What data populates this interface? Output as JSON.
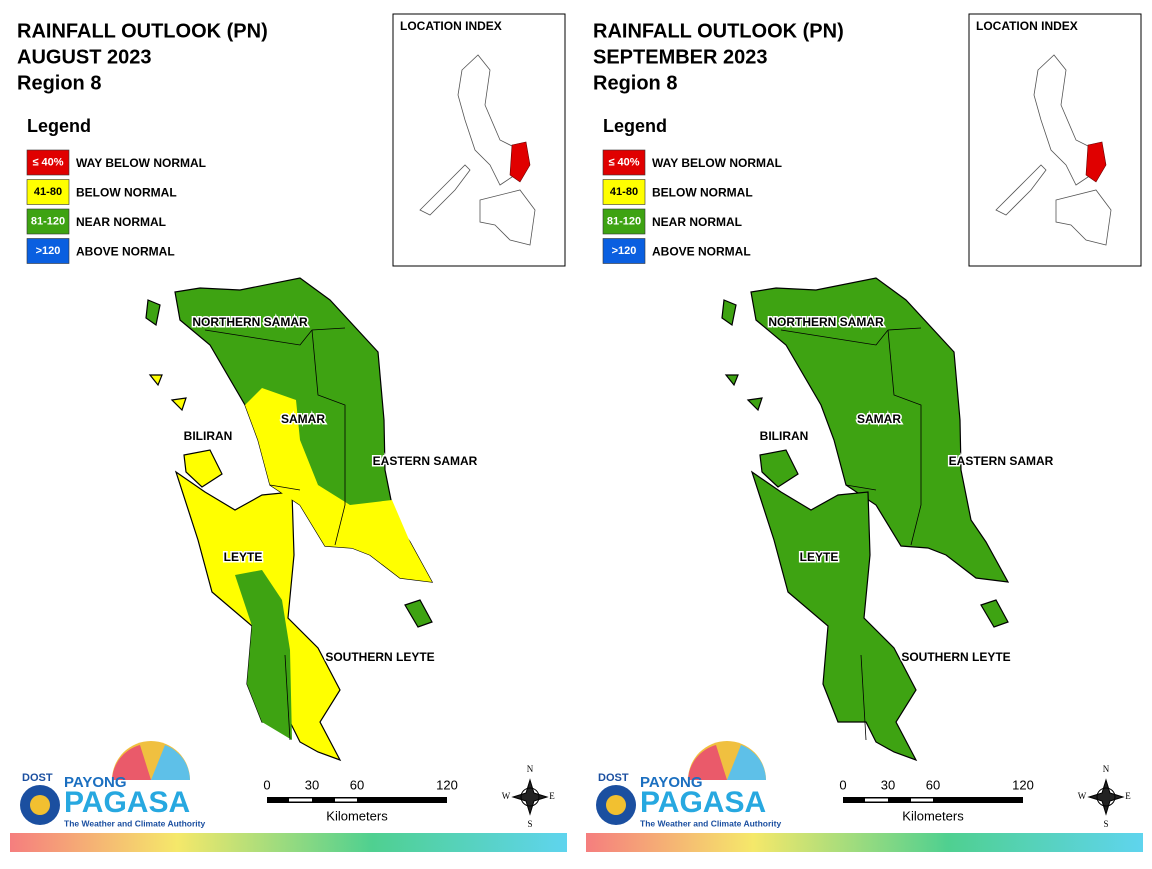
{
  "panels": [
    {
      "title": [
        "RAINFALL OUTLOOK (PN)",
        "AUGUST 2023",
        "Region 8"
      ]
    },
    {
      "title": [
        "RAINFALL OUTLOOK (PN)",
        "SEPTEMBER 2023",
        "Region 8"
      ]
    }
  ],
  "legend": {
    "title": "Legend",
    "items": [
      {
        "range": "≤ 40%",
        "label": "WAY BELOW NORMAL",
        "color": "#e00000"
      },
      {
        "range": "41-80",
        "label": "BELOW NORMAL",
        "color": "#ffff00"
      },
      {
        "range": "81-120",
        "label": "NEAR NORMAL",
        "color": "#3ea312"
      },
      {
        "range": ">120",
        "label": "ABOVE NORMAL",
        "color": "#0a5fe0"
      }
    ]
  },
  "inset_title": "LOCATION INDEX",
  "regions": [
    "NORTHERN SAMAR",
    "SAMAR",
    "EASTERN SAMAR",
    "BILIRAN",
    "LEYTE",
    "SOUTHERN LEYTE"
  ],
  "scale": {
    "ticks": [
      "0",
      "30",
      "60",
      "120"
    ],
    "unit": "Kilometers"
  },
  "compass": {
    "n": "N",
    "e": "E",
    "s": "S",
    "w": "W"
  },
  "logo": {
    "agency": "DOST",
    "payong": "PAYONG",
    "pagasa": "PAGASA",
    "tagline": "The Weather and Climate Authority"
  }
}
